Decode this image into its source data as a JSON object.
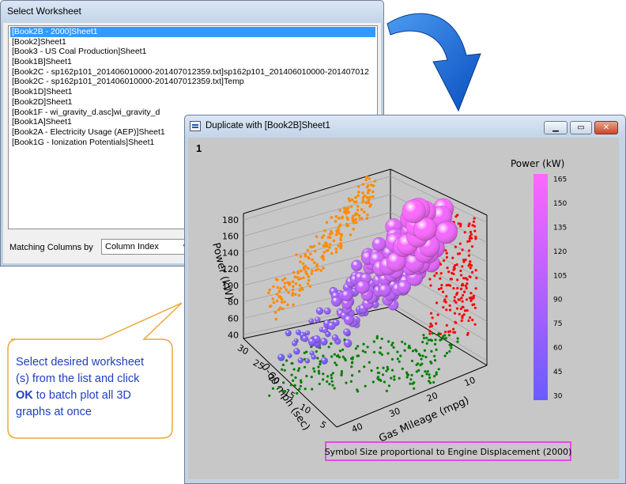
{
  "dialog": {
    "title": "Select Worksheet",
    "items": [
      "[Book2B - 2000]Sheet1",
      "[Book2]Sheet1",
      "[Book3 - US Coal Production]Sheet1",
      "[Book1B]Sheet1",
      "[Book2C - sp162p101_201406010000-201407012359.txt]sp162p101_201406010000-201407012",
      "[Book2C - sp162p101_201406010000-201407012359.txt]Temp",
      "[Book1D]Sheet1",
      "[Book2D]Sheet1",
      "[Book1F - wi_gravity_d.asc]wi_gravity_d",
      "[Book1A]Sheet1",
      "[Book2A - Electricity Usage (AEP)]Sheet1",
      "[Book1G - Ionization Potentials]Sheet1"
    ],
    "selected_index": 0,
    "matching_label": "Matching Columns by",
    "matching_value": "Column Index"
  },
  "graph_window": {
    "title": "Duplicate with [Book2B]Sheet1",
    "layer_number": "1",
    "buttons": {
      "minimize": "▁",
      "restore": "▭",
      "close": "✕"
    }
  },
  "chart_data": {
    "type": "scatter",
    "subtype": "3d-bubble",
    "xlabel": "Gas Mileage (mpg)",
    "ylabel": "0-60 mph (sec)",
    "zlabel": "Power (kW)",
    "x_ticks": [
      "10",
      "20",
      "30",
      "40"
    ],
    "y_ticks": [
      "5",
      "10",
      "15",
      "20",
      "25",
      "30"
    ],
    "z_ticks": [
      "40",
      "60",
      "80",
      "100",
      "120",
      "140",
      "160",
      "180"
    ],
    "colorbar": {
      "title": "Power (kW)",
      "ticks": [
        "165",
        "150",
        "135",
        "120",
        "105",
        "90",
        "75",
        "60",
        "45",
        "30"
      ],
      "range": [
        30,
        165
      ],
      "colors": [
        "#6a5cff",
        "#ff66ff"
      ]
    },
    "projections": {
      "xz_wall": "#ff8c00",
      "yz_wall": "#ff0000",
      "floor": "#008000"
    },
    "legend_note": "Symbol Size proportional to Engine Displacement (2000)",
    "legend_border_color": "#ee22ee"
  },
  "callout": {
    "line1": "Select desired worksheet",
    "line2": "(s) from the list and click",
    "bold": "OK",
    "line3": " to batch plot all 3D",
    "line4": "graphs at once",
    "border_color": "#e8a83a",
    "text_color": "#1f3fbf"
  }
}
